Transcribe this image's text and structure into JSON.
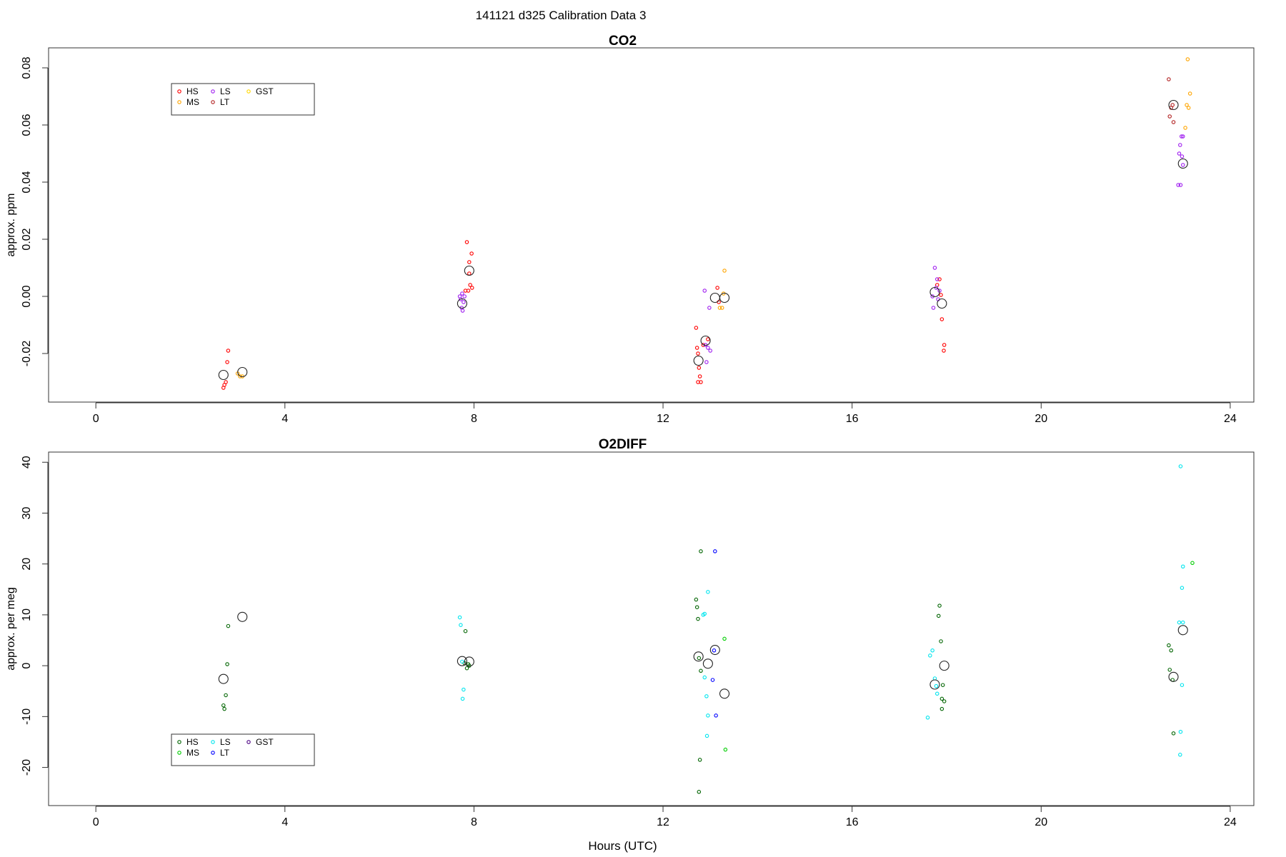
{
  "figure": {
    "title": "141121   d325   Calibration Data 3"
  },
  "chart_data": [
    {
      "type": "scatter",
      "title": "CO2",
      "xlabel": "",
      "ylabel": "approx. ppm",
      "xlim": [
        -1.0,
        24.5
      ],
      "ylim": [
        -0.037,
        0.087
      ],
      "xticks": [
        0,
        4,
        8,
        12,
        16,
        20,
        24
      ],
      "yticks": [
        -0.02,
        0.0,
        0.02,
        0.04,
        0.06,
        0.08
      ],
      "ytick_labels": [
        "-0.02",
        "0.00",
        "0.02",
        "0.04",
        "0.06",
        "0.08"
      ],
      "legend": {
        "placement": "top-left",
        "entries": [
          {
            "label": "HS",
            "color": "#ff0000"
          },
          {
            "label": "MS",
            "color": "#ffa500"
          },
          {
            "label": "LS",
            "color": "#a020f0"
          },
          {
            "label": "LT",
            "color": "#b22222"
          },
          {
            "label": "GST",
            "color": "#ffd700"
          }
        ]
      },
      "series": [
        {
          "key": "HS",
          "color": "#ff0000",
          "points": [
            [
              2.7,
              -0.032
            ],
            [
              2.72,
              -0.031
            ],
            [
              2.75,
              -0.03
            ],
            [
              2.78,
              -0.023
            ],
            [
              2.8,
              -0.019
            ],
            [
              7.85,
              0.019
            ],
            [
              7.9,
              0.012
            ],
            [
              7.95,
              0.015
            ],
            [
              7.92,
              0.004
            ],
            [
              7.88,
              0.002
            ],
            [
              7.96,
              0.003
            ],
            [
              7.82,
              0.002
            ],
            [
              7.9,
              0.008
            ],
            [
              12.7,
              -0.011
            ],
            [
              12.72,
              -0.018
            ],
            [
              12.74,
              -0.02
            ],
            [
              12.76,
              -0.025
            ],
            [
              12.78,
              -0.028
            ],
            [
              12.74,
              -0.03
            ],
            [
              12.8,
              -0.03
            ],
            [
              12.85,
              -0.017
            ],
            [
              12.95,
              -0.015
            ],
            [
              13.15,
              0.003
            ],
            [
              13.18,
              -0.002
            ],
            [
              17.8,
              0.004
            ],
            [
              17.85,
              0.006
            ],
            [
              17.88,
              0.0005
            ],
            [
              17.9,
              -0.008
            ],
            [
              17.95,
              -0.017
            ],
            [
              17.94,
              -0.019
            ]
          ]
        },
        {
          "key": "MS",
          "color": "#ffa500",
          "points": [
            [
              3.0,
              -0.027
            ],
            [
              3.05,
              -0.028
            ],
            [
              3.1,
              -0.028
            ],
            [
              13.2,
              -0.004
            ],
            [
              13.25,
              -0.004
            ],
            [
              13.3,
              0.009
            ],
            [
              13.28,
              0.001
            ],
            [
              23.1,
              0.083
            ],
            [
              23.15,
              0.071
            ],
            [
              23.08,
              0.067
            ],
            [
              23.12,
              0.066
            ],
            [
              23.05,
              0.059
            ]
          ]
        },
        {
          "key": "LS",
          "color": "#a020f0",
          "points": [
            [
              7.7,
              0.0
            ],
            [
              7.72,
              -0.001
            ],
            [
              7.75,
              0.001
            ],
            [
              7.74,
              -0.004
            ],
            [
              7.76,
              -0.005
            ],
            [
              7.78,
              -0.002
            ],
            [
              7.8,
              0.0
            ],
            [
              12.9,
              -0.017
            ],
            [
              12.95,
              -0.018
            ],
            [
              13.0,
              -0.019
            ],
            [
              12.92,
              -0.023
            ],
            [
              12.88,
              0.002
            ],
            [
              12.98,
              -0.004
            ],
            [
              17.7,
              0.0
            ],
            [
              17.72,
              -0.004
            ],
            [
              17.75,
              0.01
            ],
            [
              17.78,
              0.003
            ],
            [
              17.8,
              0.006
            ],
            [
              17.82,
              -0.001
            ],
            [
              17.85,
              0.002
            ],
            [
              22.9,
              0.039
            ],
            [
              22.95,
              0.039
            ],
            [
              22.92,
              0.05
            ],
            [
              22.98,
              0.049
            ],
            [
              23.0,
              0.056
            ],
            [
              22.94,
              0.053
            ],
            [
              22.97,
              0.056
            ],
            [
              23.0,
              0.046
            ]
          ]
        },
        {
          "key": "LT",
          "color": "#b22222",
          "points": [
            [
              22.7,
              0.076
            ],
            [
              22.75,
              0.066
            ],
            [
              22.72,
              0.063
            ],
            [
              22.8,
              0.061
            ],
            [
              22.78,
              0.067
            ]
          ]
        },
        {
          "key": "GST",
          "color": "#ffd700",
          "points": []
        }
      ],
      "means": [
        [
          2.7,
          -0.0275
        ],
        [
          3.1,
          -0.0265
        ],
        [
          7.75,
          -0.0025
        ],
        [
          7.9,
          0.009
        ],
        [
          12.75,
          -0.0225
        ],
        [
          12.9,
          -0.0155
        ],
        [
          13.1,
          -0.0005
        ],
        [
          13.3,
          -0.0005
        ],
        [
          17.75,
          0.0015
        ],
        [
          17.9,
          -0.0025
        ],
        [
          22.8,
          0.067
        ],
        [
          23.0,
          0.0465
        ]
      ]
    },
    {
      "type": "scatter",
      "title": "O2DIFF",
      "xlabel": "Hours (UTC)",
      "ylabel": "approx. per meg",
      "xlim": [
        -1.0,
        24.5
      ],
      "ylim": [
        -27.5,
        42.0
      ],
      "xticks": [
        0,
        4,
        8,
        12,
        16,
        20,
        24
      ],
      "yticks": [
        -20,
        -10,
        0,
        10,
        20,
        30,
        40
      ],
      "ytick_labels": [
        "-20",
        "-10",
        "0",
        "10",
        "20",
        "30",
        "40"
      ],
      "legend": {
        "placement": "bottom-left",
        "entries": [
          {
            "label": "HS",
            "color": "#006400"
          },
          {
            "label": "MS",
            "color": "#00cd00"
          },
          {
            "label": "LS",
            "color": "#00e5ee"
          },
          {
            "label": "LT",
            "color": "#0000ff"
          },
          {
            "label": "GST",
            "color": "#4b0082"
          }
        ]
      },
      "series": [
        {
          "key": "HS",
          "color": "#006400",
          "points": [
            [
              2.7,
              -7.8
            ],
            [
              2.72,
              -8.5
            ],
            [
              2.75,
              -5.8
            ],
            [
              2.78,
              0.3
            ],
            [
              2.8,
              7.8
            ],
            [
              7.8,
              0.5
            ],
            [
              7.85,
              -0.5
            ],
            [
              7.88,
              0.3
            ],
            [
              7.82,
              6.8
            ],
            [
              7.9,
              0.0
            ],
            [
              12.7,
              13.0
            ],
            [
              12.72,
              11.5
            ],
            [
              12.74,
              9.2
            ],
            [
              12.76,
              1.5
            ],
            [
              12.8,
              -1.0
            ],
            [
              12.78,
              -18.5
            ],
            [
              12.76,
              -24.8
            ],
            [
              12.8,
              22.5
            ],
            [
              17.85,
              11.8
            ],
            [
              17.83,
              9.8
            ],
            [
              17.88,
              4.8
            ],
            [
              17.92,
              -3.8
            ],
            [
              17.9,
              -6.5
            ],
            [
              17.95,
              -7.0
            ],
            [
              17.9,
              -8.5
            ],
            [
              22.7,
              4.0
            ],
            [
              22.75,
              3.0
            ],
            [
              22.72,
              -0.8
            ],
            [
              22.78,
              -2.8
            ],
            [
              22.8,
              -13.3
            ]
          ]
        },
        {
          "key": "MS",
          "color": "#00cd00",
          "points": [
            [
              13.3,
              5.3
            ],
            [
              13.32,
              -16.5
            ],
            [
              23.2,
              20.2
            ]
          ]
        },
        {
          "key": "LS",
          "color": "#00e5ee",
          "points": [
            [
              7.7,
              9.5
            ],
            [
              7.72,
              8.0
            ],
            [
              7.75,
              0.8
            ],
            [
              7.78,
              -4.7
            ],
            [
              7.76,
              -6.5
            ],
            [
              12.85,
              10.0
            ],
            [
              12.88,
              10.2
            ],
            [
              12.95,
              14.5
            ],
            [
              12.88,
              -2.3
            ],
            [
              12.92,
              -6.0
            ],
            [
              12.95,
              -9.8
            ],
            [
              12.93,
              -13.8
            ],
            [
              17.6,
              -10.2
            ],
            [
              17.65,
              2.0
            ],
            [
              17.7,
              3.0
            ],
            [
              17.75,
              -2.5
            ],
            [
              17.78,
              -4.0
            ],
            [
              17.8,
              -5.5
            ],
            [
              22.95,
              39.2
            ],
            [
              23.0,
              19.5
            ],
            [
              22.98,
              15.3
            ],
            [
              22.92,
              8.5
            ],
            [
              23.0,
              8.5
            ],
            [
              22.98,
              -3.8
            ],
            [
              22.95,
              -13.0
            ],
            [
              22.94,
              -17.5
            ]
          ]
        },
        {
          "key": "LT",
          "color": "#0000ff",
          "points": [
            [
              13.1,
              22.5
            ],
            [
              13.08,
              3.0
            ],
            [
              13.05,
              -2.8
            ],
            [
              13.12,
              -9.8
            ]
          ]
        },
        {
          "key": "GST",
          "color": "#4b0082",
          "points": []
        }
      ],
      "means": [
        [
          2.7,
          -2.6
        ],
        [
          3.1,
          9.6
        ],
        [
          7.75,
          0.9
        ],
        [
          7.9,
          0.8
        ],
        [
          12.75,
          1.8
        ],
        [
          12.95,
          0.4
        ],
        [
          13.1,
          3.1
        ],
        [
          13.3,
          -5.5
        ],
        [
          17.75,
          -3.7
        ],
        [
          17.95,
          0.0
        ],
        [
          22.8,
          -2.2
        ],
        [
          23.0,
          7.0
        ]
      ]
    }
  ]
}
